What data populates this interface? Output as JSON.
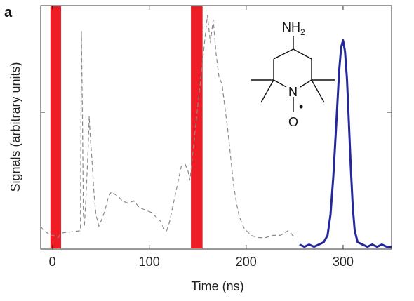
{
  "chart_data": {
    "type": "line",
    "panel_label": "a",
    "xlabel": "Time (ns)",
    "ylabel": "Signals (arbitrary units)",
    "xlim": [
      -12,
      350
    ],
    "ylim": [
      0,
      1
    ],
    "x_ticks": [
      0,
      100,
      200,
      300
    ],
    "y_ticks_labeled": false,
    "grid": false,
    "pulses": [
      {
        "x_start": -2,
        "x_end": 9,
        "color": "#ee1c24"
      },
      {
        "x_start": 143,
        "x_end": 155,
        "color": "#ee1c24"
      }
    ],
    "series": [
      {
        "style": "dashed",
        "color": "#8a8a8a",
        "points": [
          [
            -12,
            0.1
          ],
          [
            -9,
            0.08
          ],
          [
            -5,
            0.07
          ],
          [
            -2,
            0.06
          ],
          [
            1,
            0.06
          ],
          [
            6,
            0.05
          ],
          [
            9,
            0.07
          ],
          [
            29,
            0.08
          ],
          [
            30,
            0.95
          ],
          [
            31,
            0.6
          ],
          [
            32,
            0.15
          ],
          [
            33,
            0.1
          ],
          [
            35,
            0.25
          ],
          [
            37,
            0.45
          ],
          [
            38,
            0.58
          ],
          [
            39,
            0.5
          ],
          [
            41,
            0.38
          ],
          [
            43,
            0.24
          ],
          [
            45,
            0.15
          ],
          [
            48,
            0.1
          ],
          [
            52,
            0.14
          ],
          [
            55,
            0.18
          ],
          [
            58,
            0.23
          ],
          [
            61,
            0.25
          ],
          [
            64,
            0.24
          ],
          [
            68,
            0.23
          ],
          [
            72,
            0.21
          ],
          [
            78,
            0.2
          ],
          [
            84,
            0.21
          ],
          [
            90,
            0.18
          ],
          [
            96,
            0.17
          ],
          [
            102,
            0.16
          ],
          [
            107,
            0.14
          ],
          [
            112,
            0.12
          ],
          [
            115,
            0.09
          ],
          [
            118,
            0.08
          ],
          [
            121,
            0.12
          ],
          [
            125,
            0.2
          ],
          [
            129,
            0.28
          ],
          [
            133,
            0.36
          ],
          [
            137,
            0.37
          ],
          [
            140,
            0.34
          ],
          [
            142,
            0.3
          ],
          [
            160,
            1.02
          ],
          [
            163,
            0.9
          ],
          [
            166,
            1.0
          ],
          [
            169,
            0.85
          ],
          [
            172,
            0.75
          ],
          [
            175,
            0.72
          ],
          [
            178,
            0.62
          ],
          [
            181,
            0.52
          ],
          [
            184,
            0.4
          ],
          [
            187,
            0.28
          ],
          [
            190,
            0.2
          ],
          [
            193,
            0.14
          ],
          [
            198,
            0.09
          ],
          [
            205,
            0.06
          ],
          [
            212,
            0.05
          ],
          [
            220,
            0.05
          ],
          [
            228,
            0.06
          ],
          [
            235,
            0.06
          ],
          [
            240,
            0.07
          ],
          [
            243,
            0.08
          ],
          [
            246,
            0.07
          ],
          [
            250,
            0.05
          ]
        ]
      },
      {
        "style": "solid",
        "color": "#25289a",
        "points": [
          [
            255,
            0.02
          ],
          [
            260,
            0.01
          ],
          [
            265,
            0.02
          ],
          [
            270,
            0.01
          ],
          [
            275,
            0.02
          ],
          [
            280,
            0.03
          ],
          [
            284,
            0.06
          ],
          [
            287,
            0.15
          ],
          [
            290,
            0.32
          ],
          [
            293,
            0.55
          ],
          [
            296,
            0.78
          ],
          [
            298,
            0.88
          ],
          [
            300,
            0.91
          ],
          [
            302,
            0.86
          ],
          [
            304,
            0.74
          ],
          [
            306,
            0.55
          ],
          [
            308,
            0.35
          ],
          [
            310,
            0.18
          ],
          [
            312,
            0.08
          ],
          [
            315,
            0.03
          ],
          [
            320,
            0.02
          ],
          [
            325,
            0.01
          ],
          [
            330,
            0.02
          ],
          [
            335,
            0.01
          ],
          [
            340,
            0.02
          ],
          [
            345,
            0.01
          ],
          [
            350,
            0.01
          ]
        ]
      }
    ]
  },
  "molecule": {
    "top_group": "NH",
    "top_group_subscript": "2",
    "ring_atom": "N",
    "radical_dot": "•",
    "oxygen": "O"
  }
}
